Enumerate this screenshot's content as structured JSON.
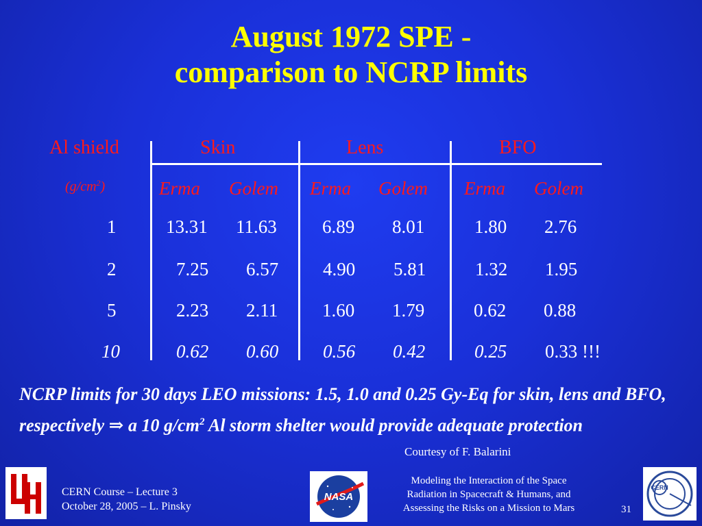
{
  "title": {
    "line1": "August 1972 SPE -",
    "line2": "comparison to NCRP limits"
  },
  "table": {
    "col_header_shield": "Al shield",
    "col_header_shield_unit": "(g/cm",
    "col_header_shield_unit_sup": "2",
    "col_header_shield_unit_end": ")",
    "groups": [
      "Skin",
      "Lens",
      "BFO"
    ],
    "subheaders": [
      "Erma",
      "Golem",
      "Erma",
      "Golem",
      "Erma",
      "Golem"
    ],
    "rows": [
      {
        "shield": "1",
        "values": [
          "13.31",
          "11.63",
          "6.89",
          "8.01",
          "1.80",
          "2.76"
        ]
      },
      {
        "shield": "2",
        "values": [
          "7.25",
          "6.57",
          "4.90",
          "5.81",
          "1.32",
          "1.95"
        ]
      },
      {
        "shield": "5",
        "values": [
          "2.23",
          "2.11",
          "1.60",
          "1.79",
          "0.62",
          "0.88"
        ]
      },
      {
        "shield": "10",
        "values": [
          "0.62",
          "0.60",
          "0.56",
          "0.42",
          "0.25",
          "0.33 !!!"
        ]
      }
    ]
  },
  "note": {
    "text1": "NCRP limits for 30 days LEO missions: 1.5, 1.0 and 0.25 Gy-Eq for skin, lens and BFO, respectively ",
    "arrow": "⇒",
    "text2": " a 10 g/cm",
    "sup": "2",
    "text3": " Al storm shelter would provide adequate protection"
  },
  "courtesy": "Courtesy of F. Balarini",
  "footer": {
    "left_line1": "CERN Course – Lecture 3",
    "left_line2": "October 28, 2005 – L. Pinsky",
    "center_line1": "Modeling the Interaction of the Space",
    "center_line2": "Radiation in Spacecraft & Humans, and",
    "center_line3": "Assessing the Risks on a Mission to Mars",
    "page_number": "31",
    "nasa_logo_text": "NASA",
    "cern_logo_text": "CERN"
  },
  "colors": {
    "background": "#1a30d8",
    "title": "#ffff00",
    "header_red": "#ff1a1a",
    "text_white": "#ffffff"
  }
}
